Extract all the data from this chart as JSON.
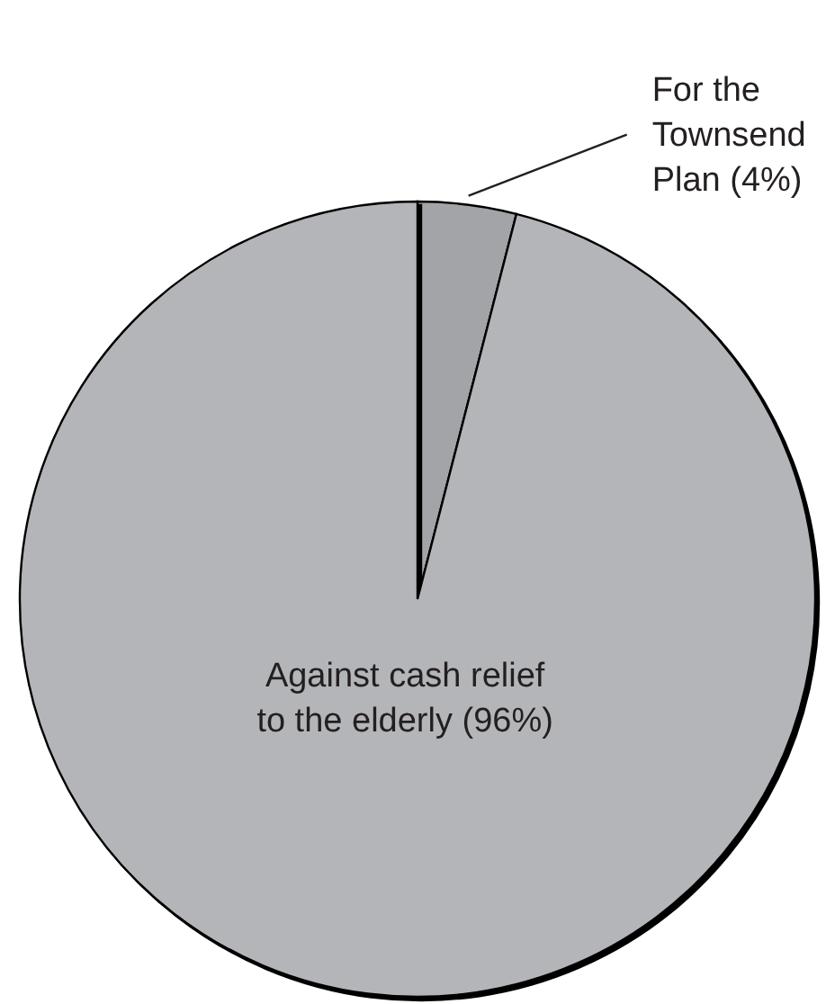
{
  "chart_data": {
    "type": "pie",
    "categories": [
      "For the Townsend Plan",
      "Against cash relief to the elderly"
    ],
    "values": [
      4,
      96
    ],
    "colors": [
      "#a3a4a7",
      "#b4b5b8"
    ],
    "value_labels": [
      "(4%)",
      "(96%)"
    ]
  }
}
